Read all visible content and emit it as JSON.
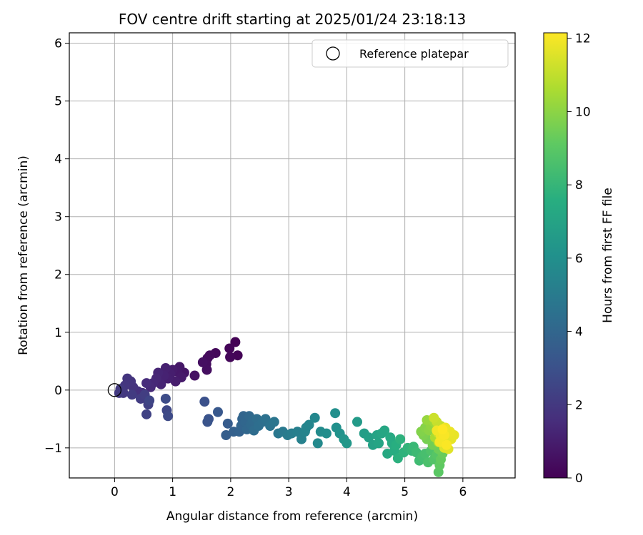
{
  "chart_data": {
    "type": "scatter",
    "title": "FOV centre drift starting at 2025/01/24 23:18:13",
    "xlabel": "Angular distance from reference (arcmin)",
    "ylabel": "Rotation from reference (arcmin)",
    "xlim": [
      -0.78,
      6.9
    ],
    "ylim": [
      -1.52,
      6.18
    ],
    "xticks": [
      0,
      1,
      2,
      3,
      4,
      5,
      6
    ],
    "yticks": [
      -1,
      0,
      1,
      2,
      3,
      4,
      5,
      6
    ],
    "grid": true,
    "colormap": "viridis",
    "colorbar": {
      "label": "Hours from first FF file",
      "min": 0,
      "max": 12.15,
      "ticks": [
        0,
        2,
        4,
        6,
        8,
        10,
        12
      ]
    },
    "legend": {
      "position": "top-right",
      "entries": [
        "Reference platepar"
      ]
    },
    "reference_point": {
      "x": 0,
      "y": 0
    },
    "points": [
      {
        "x": 2.08,
        "y": 0.83,
        "h": 0.05
      },
      {
        "x": 2.12,
        "y": 0.6,
        "h": 0.1
      },
      {
        "x": 1.98,
        "y": 0.72,
        "h": 0.15
      },
      {
        "x": 1.99,
        "y": 0.57,
        "h": 0.2
      },
      {
        "x": 1.74,
        "y": 0.64,
        "h": 0.25
      },
      {
        "x": 1.64,
        "y": 0.6,
        "h": 0.3
      },
      {
        "x": 1.6,
        "y": 0.55,
        "h": 0.35
      },
      {
        "x": 1.58,
        "y": 0.45,
        "h": 0.4
      },
      {
        "x": 1.59,
        "y": 0.35,
        "h": 0.45
      },
      {
        "x": 1.52,
        "y": 0.48,
        "h": 0.5
      },
      {
        "x": 1.38,
        "y": 0.25,
        "h": 0.6
      },
      {
        "x": 1.2,
        "y": 0.3,
        "h": 0.7
      },
      {
        "x": 1.12,
        "y": 0.4,
        "h": 0.75
      },
      {
        "x": 1.08,
        "y": 0.32,
        "h": 0.8
      },
      {
        "x": 1.15,
        "y": 0.22,
        "h": 0.85
      },
      {
        "x": 1.0,
        "y": 0.35,
        "h": 0.9
      },
      {
        "x": 1.05,
        "y": 0.15,
        "h": 0.95
      },
      {
        "x": 0.96,
        "y": 0.28,
        "h": 1.0
      },
      {
        "x": 0.92,
        "y": 0.2,
        "h": 1.05
      },
      {
        "x": 0.88,
        "y": 0.38,
        "h": 1.1
      },
      {
        "x": 0.85,
        "y": 0.25,
        "h": 1.15
      },
      {
        "x": 0.8,
        "y": 0.1,
        "h": 1.2
      },
      {
        "x": 0.75,
        "y": 0.3,
        "h": 1.25
      },
      {
        "x": 0.72,
        "y": 0.2,
        "h": 1.3
      },
      {
        "x": 0.66,
        "y": 0.12,
        "h": 1.35
      },
      {
        "x": 0.62,
        "y": 0.05,
        "h": 1.4
      },
      {
        "x": 0.55,
        "y": 0.12,
        "h": 1.5
      },
      {
        "x": 0.48,
        "y": -0.05,
        "h": 1.6
      },
      {
        "x": 0.4,
        "y": -0.02,
        "h": 1.7
      },
      {
        "x": 0.32,
        "y": 0.05,
        "h": 1.75
      },
      {
        "x": 0.28,
        "y": 0.15,
        "h": 1.8
      },
      {
        "x": 0.22,
        "y": 0.2,
        "h": 1.85
      },
      {
        "x": 0.18,
        "y": 0.08,
        "h": 1.9
      },
      {
        "x": 0.15,
        "y": -0.05,
        "h": 1.95
      },
      {
        "x": 0.1,
        "y": 0.02,
        "h": 2.0
      },
      {
        "x": 0.08,
        "y": -0.05,
        "h": 2.05
      },
      {
        "x": 0.3,
        "y": -0.08,
        "h": 2.1
      },
      {
        "x": 0.45,
        "y": -0.15,
        "h": 2.15
      },
      {
        "x": 0.52,
        "y": -0.08,
        "h": 2.2
      },
      {
        "x": 0.58,
        "y": -0.25,
        "h": 2.3
      },
      {
        "x": 0.55,
        "y": -0.42,
        "h": 2.4
      },
      {
        "x": 0.6,
        "y": -0.18,
        "h": 2.5
      },
      {
        "x": 0.9,
        "y": -0.35,
        "h": 2.6
      },
      {
        "x": 0.92,
        "y": -0.45,
        "h": 2.7
      },
      {
        "x": 0.88,
        "y": -0.15,
        "h": 2.8
      },
      {
        "x": 1.55,
        "y": -0.2,
        "h": 3.0
      },
      {
        "x": 1.62,
        "y": -0.5,
        "h": 3.1
      },
      {
        "x": 1.6,
        "y": -0.55,
        "h": 3.15
      },
      {
        "x": 1.78,
        "y": -0.38,
        "h": 3.3
      },
      {
        "x": 1.95,
        "y": -0.58,
        "h": 3.5
      },
      {
        "x": 1.92,
        "y": -0.78,
        "h": 3.6
      },
      {
        "x": 2.05,
        "y": -0.72,
        "h": 3.7
      },
      {
        "x": 2.15,
        "y": -0.72,
        "h": 3.8
      },
      {
        "x": 2.2,
        "y": -0.5,
        "h": 3.85
      },
      {
        "x": 2.18,
        "y": -0.62,
        "h": 3.9
      },
      {
        "x": 2.22,
        "y": -0.45,
        "h": 3.95
      },
      {
        "x": 2.25,
        "y": -0.55,
        "h": 4.0
      },
      {
        "x": 2.28,
        "y": -0.68,
        "h": 4.05
      },
      {
        "x": 2.32,
        "y": -0.45,
        "h": 4.1
      },
      {
        "x": 2.35,
        "y": -0.6,
        "h": 4.15
      },
      {
        "x": 2.38,
        "y": -0.52,
        "h": 4.2
      },
      {
        "x": 2.4,
        "y": -0.7,
        "h": 4.25
      },
      {
        "x": 2.45,
        "y": -0.5,
        "h": 4.3
      },
      {
        "x": 2.48,
        "y": -0.62,
        "h": 4.35
      },
      {
        "x": 2.55,
        "y": -0.55,
        "h": 4.4
      },
      {
        "x": 2.6,
        "y": -0.5,
        "h": 4.5
      },
      {
        "x": 2.68,
        "y": -0.62,
        "h": 4.6
      },
      {
        "x": 2.75,
        "y": -0.55,
        "h": 4.7
      },
      {
        "x": 2.82,
        "y": -0.75,
        "h": 4.8
      },
      {
        "x": 2.9,
        "y": -0.72,
        "h": 4.9
      },
      {
        "x": 2.98,
        "y": -0.78,
        "h": 5.0
      },
      {
        "x": 3.05,
        "y": -0.75,
        "h": 5.1
      },
      {
        "x": 3.15,
        "y": -0.72,
        "h": 5.2
      },
      {
        "x": 3.22,
        "y": -0.85,
        "h": 5.3
      },
      {
        "x": 3.28,
        "y": -0.72,
        "h": 5.4
      },
      {
        "x": 3.3,
        "y": -0.65,
        "h": 5.45
      },
      {
        "x": 3.35,
        "y": -0.6,
        "h": 5.5
      },
      {
        "x": 3.45,
        "y": -0.48,
        "h": 5.6
      },
      {
        "x": 3.5,
        "y": -0.92,
        "h": 5.7
      },
      {
        "x": 3.55,
        "y": -0.72,
        "h": 5.8
      },
      {
        "x": 3.65,
        "y": -0.75,
        "h": 5.9
      },
      {
        "x": 3.8,
        "y": -0.4,
        "h": 6.0
      },
      {
        "x": 3.82,
        "y": -0.65,
        "h": 6.05
      },
      {
        "x": 3.88,
        "y": -0.75,
        "h": 6.15
      },
      {
        "x": 3.95,
        "y": -0.85,
        "h": 6.3
      },
      {
        "x": 4.0,
        "y": -0.92,
        "h": 6.4
      },
      {
        "x": 4.18,
        "y": -0.55,
        "h": 6.55
      },
      {
        "x": 4.3,
        "y": -0.75,
        "h": 6.7
      },
      {
        "x": 4.38,
        "y": -0.82,
        "h": 6.8
      },
      {
        "x": 4.45,
        "y": -0.95,
        "h": 6.9
      },
      {
        "x": 4.52,
        "y": -0.78,
        "h": 7.0
      },
      {
        "x": 4.55,
        "y": -0.92,
        "h": 7.05
      },
      {
        "x": 4.6,
        "y": -0.75,
        "h": 7.1
      },
      {
        "x": 4.65,
        "y": -0.7,
        "h": 7.2
      },
      {
        "x": 4.7,
        "y": -1.1,
        "h": 7.3
      },
      {
        "x": 4.75,
        "y": -0.82,
        "h": 7.35
      },
      {
        "x": 4.78,
        "y": -0.92,
        "h": 7.4
      },
      {
        "x": 4.82,
        "y": -1.05,
        "h": 7.5
      },
      {
        "x": 4.85,
        "y": -0.95,
        "h": 7.6
      },
      {
        "x": 4.88,
        "y": -1.18,
        "h": 7.7
      },
      {
        "x": 4.92,
        "y": -0.85,
        "h": 7.75
      },
      {
        "x": 4.98,
        "y": -1.08,
        "h": 7.8
      },
      {
        "x": 5.05,
        "y": -1.0,
        "h": 7.9
      },
      {
        "x": 5.12,
        "y": -1.05,
        "h": 8.0
      },
      {
        "x": 5.15,
        "y": -0.98,
        "h": 8.1
      },
      {
        "x": 5.2,
        "y": -1.08,
        "h": 8.2
      },
      {
        "x": 5.25,
        "y": -1.22,
        "h": 8.3
      },
      {
        "x": 5.3,
        "y": -1.15,
        "h": 8.4
      },
      {
        "x": 5.35,
        "y": -1.1,
        "h": 8.5
      },
      {
        "x": 5.4,
        "y": -1.25,
        "h": 8.6
      },
      {
        "x": 5.45,
        "y": -1.05,
        "h": 8.7
      },
      {
        "x": 5.5,
        "y": -1.2,
        "h": 8.8
      },
      {
        "x": 5.55,
        "y": -1.12,
        "h": 8.9
      },
      {
        "x": 5.58,
        "y": -1.42,
        "h": 9.0
      },
      {
        "x": 5.6,
        "y": -1.3,
        "h": 9.1
      },
      {
        "x": 5.62,
        "y": -1.2,
        "h": 9.2
      },
      {
        "x": 5.65,
        "y": -1.1,
        "h": 9.3
      },
      {
        "x": 5.58,
        "y": -1.02,
        "h": 9.4
      },
      {
        "x": 5.48,
        "y": -0.95,
        "h": 9.5
      },
      {
        "x": 5.38,
        "y": -0.85,
        "h": 9.6
      },
      {
        "x": 5.32,
        "y": -0.78,
        "h": 9.7
      },
      {
        "x": 5.28,
        "y": -0.72,
        "h": 9.8
      },
      {
        "x": 5.35,
        "y": -0.65,
        "h": 9.9
      },
      {
        "x": 5.42,
        "y": -0.7,
        "h": 10.0
      },
      {
        "x": 5.45,
        "y": -0.62,
        "h": 10.1
      },
      {
        "x": 5.38,
        "y": -0.52,
        "h": 10.2
      },
      {
        "x": 5.5,
        "y": -0.55,
        "h": 10.3
      },
      {
        "x": 5.55,
        "y": -0.6,
        "h": 10.4
      },
      {
        "x": 5.6,
        "y": -0.7,
        "h": 10.5
      },
      {
        "x": 5.52,
        "y": -0.82,
        "h": 10.6
      },
      {
        "x": 5.58,
        "y": -0.9,
        "h": 10.7
      },
      {
        "x": 5.65,
        "y": -0.75,
        "h": 10.8
      },
      {
        "x": 5.7,
        "y": -0.68,
        "h": 10.9
      },
      {
        "x": 5.62,
        "y": -0.62,
        "h": 11.0
      },
      {
        "x": 5.55,
        "y": -0.55,
        "h": 11.1
      },
      {
        "x": 5.5,
        "y": -0.48,
        "h": 11.2
      },
      {
        "x": 5.58,
        "y": -0.75,
        "h": 11.3
      },
      {
        "x": 5.65,
        "y": -0.82,
        "h": 11.4
      },
      {
        "x": 5.72,
        "y": -0.9,
        "h": 11.5
      },
      {
        "x": 5.68,
        "y": -1.0,
        "h": 11.55
      },
      {
        "x": 5.75,
        "y": -1.02,
        "h": 11.6
      },
      {
        "x": 5.8,
        "y": -0.85,
        "h": 11.7
      },
      {
        "x": 5.85,
        "y": -0.78,
        "h": 11.75
      },
      {
        "x": 5.78,
        "y": -0.72,
        "h": 11.8
      },
      {
        "x": 5.7,
        "y": -0.65,
        "h": 11.85
      },
      {
        "x": 5.62,
        "y": -0.8,
        "h": 11.9
      },
      {
        "x": 5.55,
        "y": -0.7,
        "h": 11.95
      },
      {
        "x": 5.6,
        "y": -0.9,
        "h": 12.0
      },
      {
        "x": 5.68,
        "y": -0.78,
        "h": 12.05
      },
      {
        "x": 5.72,
        "y": -0.95,
        "h": 12.1
      },
      {
        "x": 5.65,
        "y": -0.68,
        "h": 12.15
      }
    ]
  }
}
